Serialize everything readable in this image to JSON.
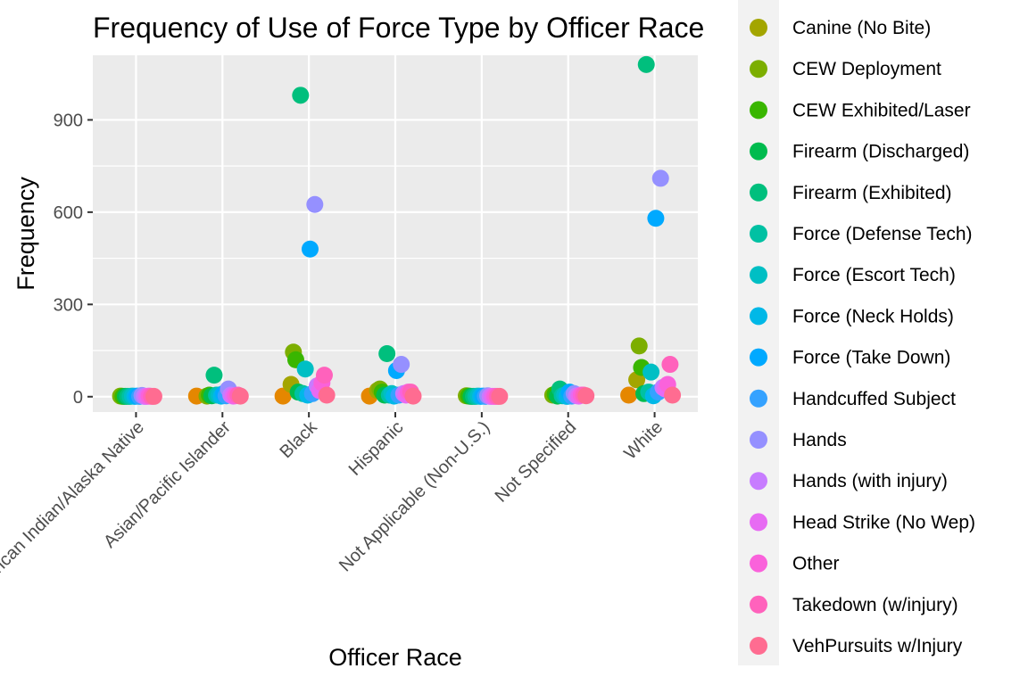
{
  "chart_data": {
    "type": "scatter",
    "title": "Frequency of Use of Force Type by Officer Race",
    "xlabel": "Officer Race",
    "ylabel": "Frequency",
    "categories": [
      "American Indian/Alaska Native",
      "Asian/Pacific Islander",
      "Black",
      "Hispanic",
      "Not Applicable (Non-U.S.)",
      "Not Specified",
      "White"
    ],
    "yticks": [
      0,
      300,
      600,
      900
    ],
    "ylim": [
      -50,
      1110
    ],
    "grid": true,
    "legend_position": "right",
    "series": [
      {
        "name": "Canine (No Bite)",
        "color": "#A3A500",
        "values": [
          null,
          null,
          40,
          20,
          null,
          null,
          55
        ]
      },
      {
        "name": "CEW Deployment",
        "color": "#7CAE00",
        "values": [
          2,
          2,
          145,
          25,
          3,
          5,
          165
        ]
      },
      {
        "name": "CEW Exhibited/Laser",
        "color": "#39B600",
        "values": [
          1,
          5,
          120,
          15,
          2,
          8,
          95
        ]
      },
      {
        "name": "Firearm (Discharged)",
        "color": "#00BB4E",
        "values": [
          1,
          3,
          15,
          5,
          1,
          2,
          10
        ]
      },
      {
        "name": "Firearm (Exhibited)",
        "color": "#00BF7D",
        "values": [
          1,
          70,
          980,
          140,
          1,
          25,
          1080
        ]
      },
      {
        "name": "Force (Defense Tech)",
        "color": "#00C1A3",
        "values": [
          1,
          5,
          10,
          5,
          1,
          3,
          15
        ]
      },
      {
        "name": "Force (Escort Tech)",
        "color": "#00BFC4",
        "values": [
          2,
          5,
          90,
          10,
          2,
          5,
          80
        ]
      },
      {
        "name": "Force (Neck Holds)",
        "color": "#00B8E7",
        "values": [
          1,
          2,
          5,
          2,
          1,
          1,
          3
        ]
      },
      {
        "name": "Force (Take Down)",
        "color": "#00A9FF",
        "values": [
          2,
          10,
          480,
          85,
          2,
          15,
          580
        ]
      },
      {
        "name": "Handcuffed Subject",
        "color": "#35A2FF",
        "values": [
          1,
          3,
          10,
          5,
          1,
          2,
          15
        ]
      },
      {
        "name": "Hands",
        "color": "#9590FF",
        "values": [
          4,
          25,
          625,
          105,
          3,
          10,
          710
        ]
      },
      {
        "name": "Hands (with injury)",
        "color": "#C77CFF",
        "values": [
          1,
          5,
          35,
          10,
          1,
          3,
          30
        ]
      },
      {
        "name": "Head Strike (No Wep)",
        "color": "#E76BF3",
        "values": [
          1,
          2,
          20,
          5,
          1,
          2,
          25
        ]
      },
      {
        "name": "Other",
        "color": "#FA62DB",
        "values": [
          2,
          3,
          45,
          15,
          1,
          5,
          40
        ]
      },
      {
        "name": "Takedown (w/injury)",
        "color": "#FF62BC",
        "values": [
          1,
          5,
          70,
          15,
          1,
          5,
          105
        ]
      },
      {
        "name": "VehPursuits w/Injury",
        "color": "#FF6C91",
        "values": [
          1,
          2,
          5,
          2,
          1,
          3,
          5
        ]
      }
    ],
    "extra_points": {
      "color": "#E58700",
      "label": "",
      "values": [
        null,
        2,
        2,
        2,
        null,
        null,
        5
      ]
    }
  }
}
